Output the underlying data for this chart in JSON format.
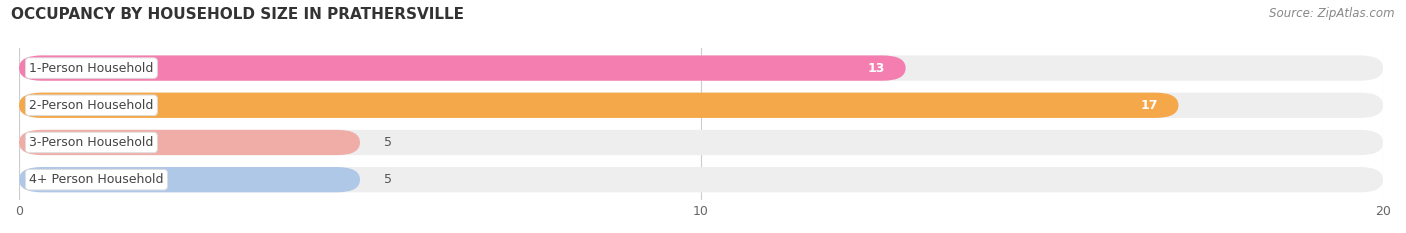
{
  "title": "OCCUPANCY BY HOUSEHOLD SIZE IN PRATHERSVILLE",
  "source": "Source: ZipAtlas.com",
  "categories": [
    "1-Person Household",
    "2-Person Household",
    "3-Person Household",
    "4+ Person Household"
  ],
  "values": [
    13,
    17,
    5,
    5
  ],
  "bar_colors": [
    "#F47EB0",
    "#F5A84A",
    "#F0ADA8",
    "#AFC8E8"
  ],
  "value_inside": [
    true,
    true,
    false,
    false
  ],
  "xlim": [
    0,
    20
  ],
  "xticks": [
    0,
    10,
    20
  ],
  "background_color": "#FFFFFF",
  "row_bg_color": "#EEEEEE",
  "title_fontsize": 11,
  "source_fontsize": 8.5,
  "label_fontsize": 9,
  "value_fontsize": 9,
  "figsize": [
    14.06,
    2.33
  ],
  "dpi": 100
}
